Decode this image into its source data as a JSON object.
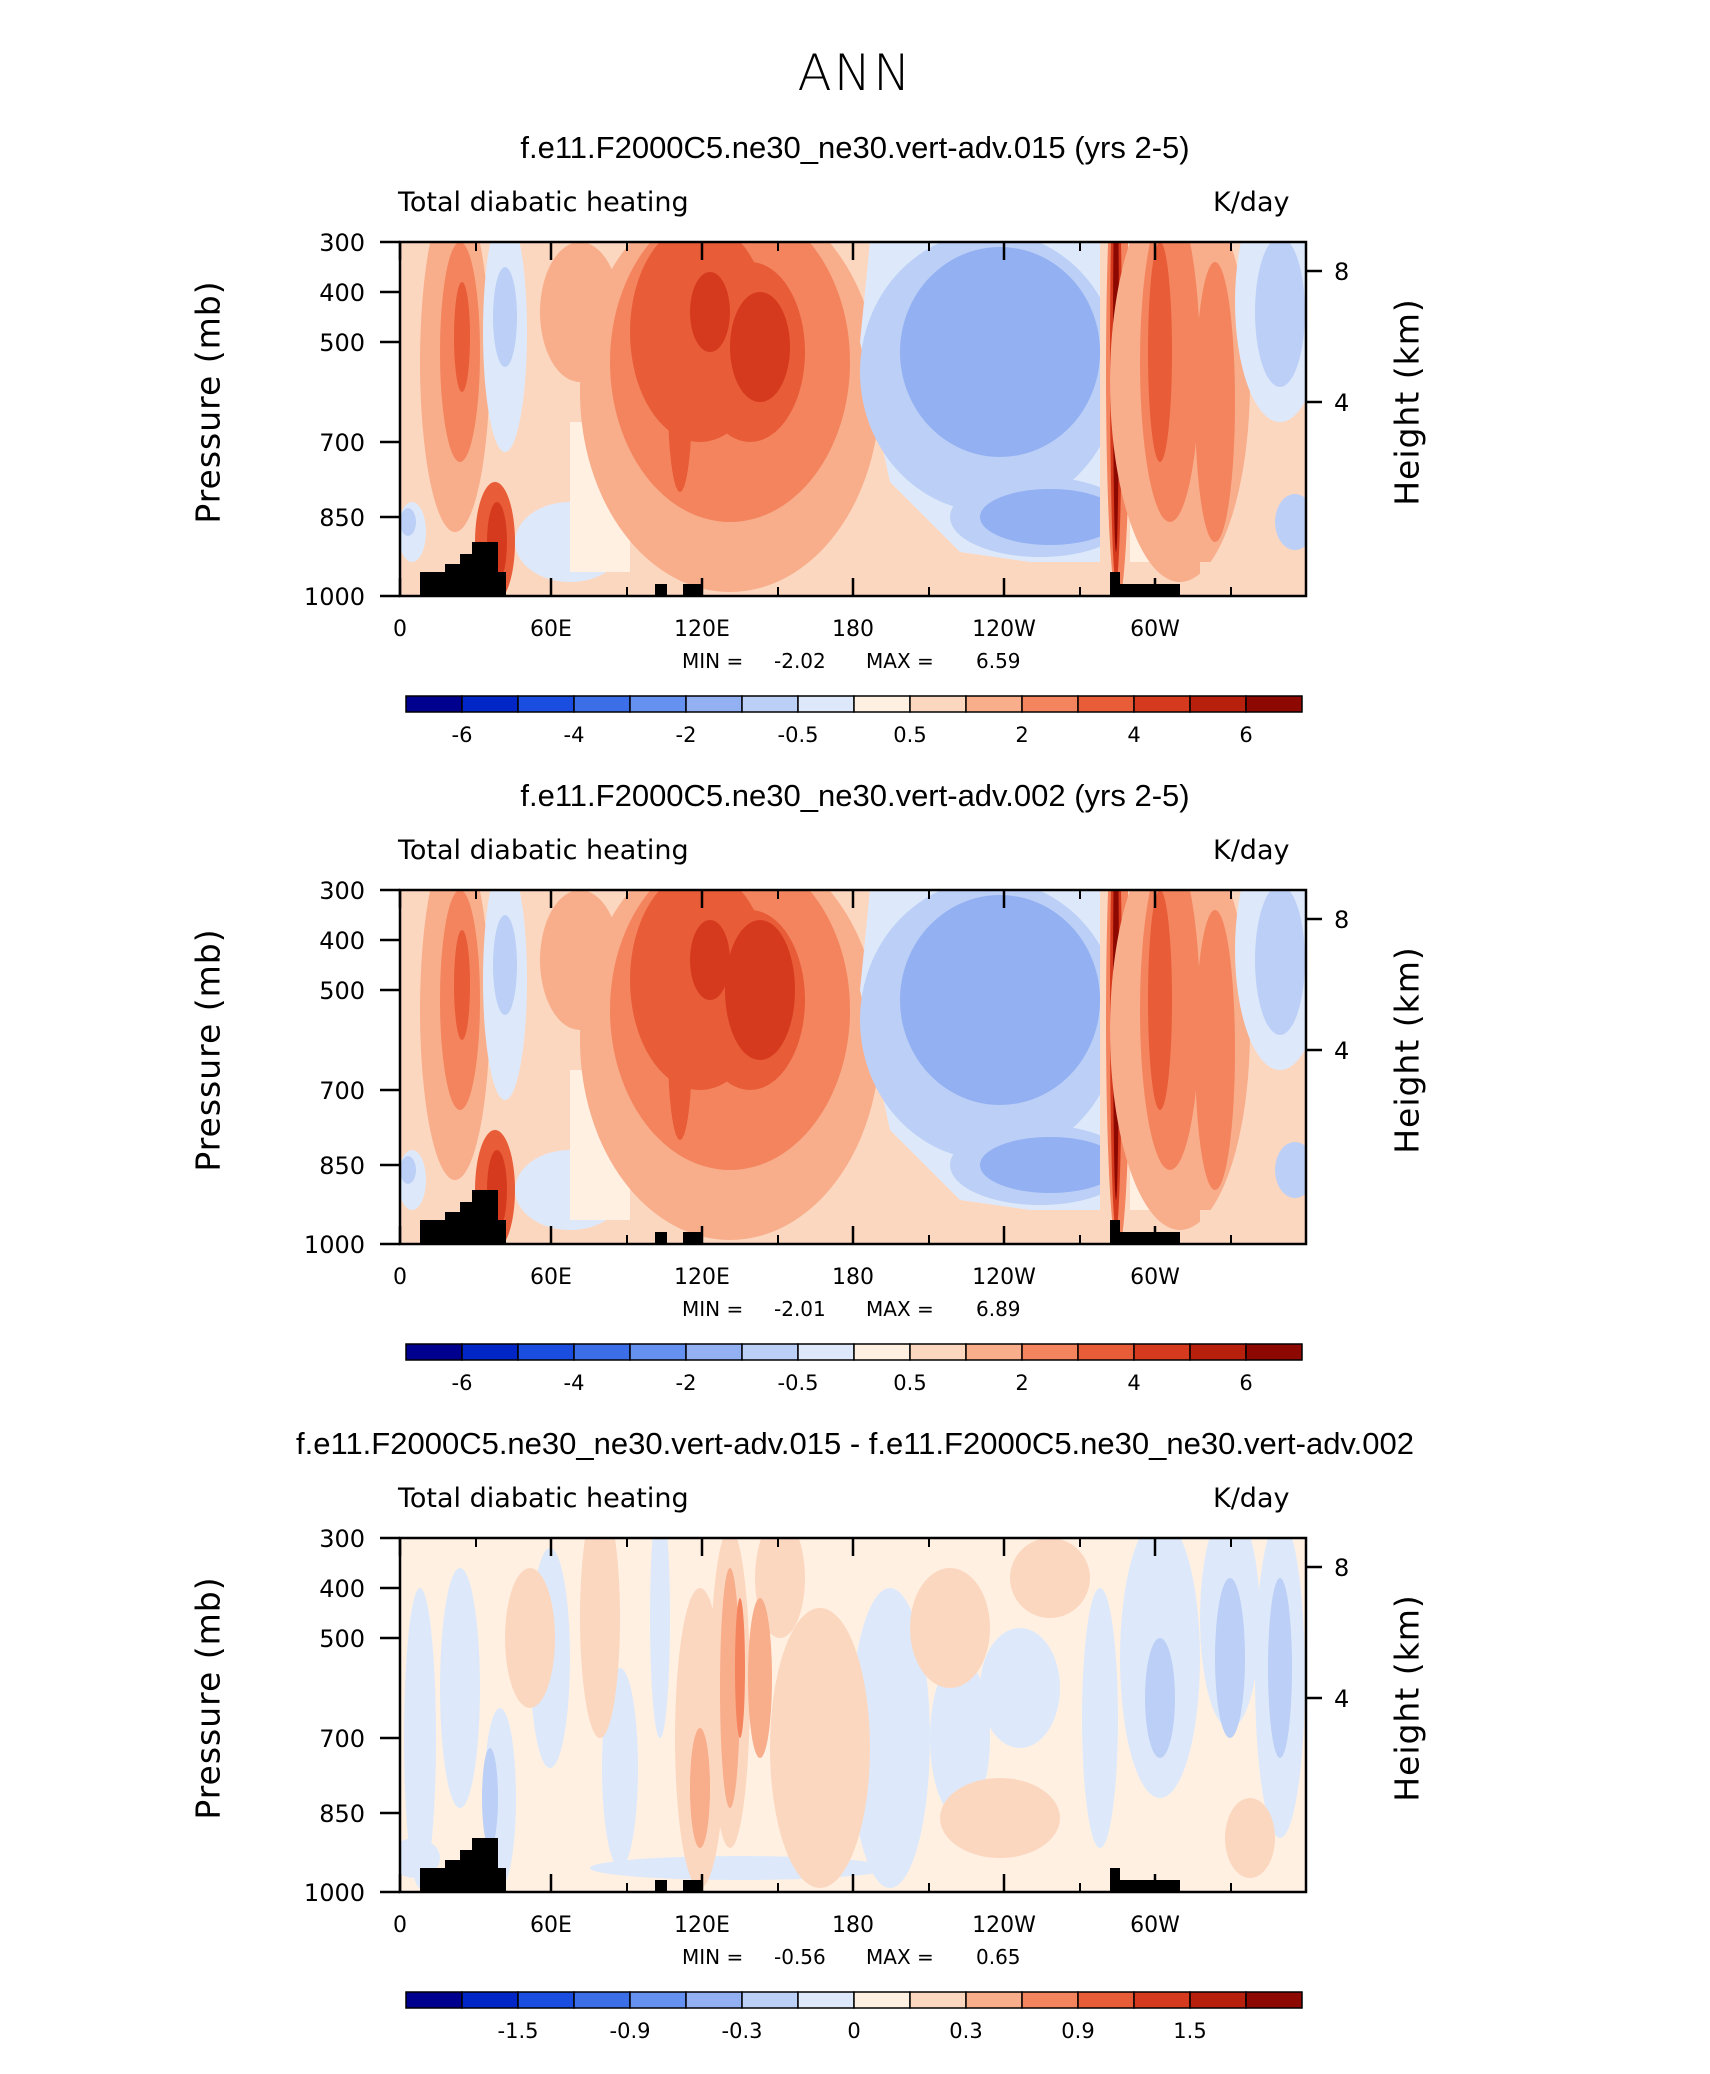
{
  "page": {
    "title": "ANN"
  },
  "colors": {
    "bins": [
      "#00008f",
      "#0026c8",
      "#1a4ee0",
      "#3c6ee8",
      "#6591f0",
      "#92b0f2",
      "#bccff6",
      "#dde9fa",
      "#fff0e2",
      "#fcd7c0",
      "#f8ad8b",
      "#f3845e",
      "#e85c38",
      "#d63a1e",
      "#b8200e",
      "#8c0800"
    ],
    "topo": "#000000"
  },
  "chart_data": [
    {
      "type": "contour",
      "title": "f.e11.F2000C5.ne30_ne30.vert-adv.015 (yrs 2-5)",
      "left_string": "Total diabatic heating",
      "right_string": "K/day",
      "ylabel": "Pressure (mb)",
      "y2label": "Height (km)",
      "yticks": [
        "300",
        "400",
        "500",
        "700",
        "850",
        "1000"
      ],
      "y2ticks": [
        "8",
        "4"
      ],
      "xticks": [
        "0",
        "60E",
        "120E",
        "180",
        "120W",
        "60W"
      ],
      "minmax": {
        "min_label": "MIN =",
        "min": "-2.02",
        "max_label": "MAX =",
        "max": "6.59"
      },
      "colorbar": {
        "ticks": [
          "-6",
          "-4",
          "-2",
          "-0.5",
          "0.5",
          "2",
          "4",
          "6"
        ]
      }
    },
    {
      "type": "contour",
      "title": "f.e11.F2000C5.ne30_ne30.vert-adv.002 (yrs 2-5)",
      "left_string": "Total diabatic heating",
      "right_string": "K/day",
      "ylabel": "Pressure (mb)",
      "y2label": "Height (km)",
      "yticks": [
        "300",
        "400",
        "500",
        "700",
        "850",
        "1000"
      ],
      "y2ticks": [
        "8",
        "4"
      ],
      "xticks": [
        "0",
        "60E",
        "120E",
        "180",
        "120W",
        "60W"
      ],
      "minmax": {
        "min_label": "MIN =",
        "min": "-2.01",
        "max_label": "MAX =",
        "max": "6.89"
      },
      "colorbar": {
        "ticks": [
          "-6",
          "-4",
          "-2",
          "-0.5",
          "0.5",
          "2",
          "4",
          "6"
        ]
      }
    },
    {
      "type": "contour",
      "title": "f.e11.F2000C5.ne30_ne30.vert-adv.015 - f.e11.F2000C5.ne30_ne30.vert-adv.002",
      "left_string": "Total diabatic heating",
      "right_string": "K/day",
      "ylabel": "Pressure (mb)",
      "y2label": "Height (km)",
      "yticks": [
        "300",
        "400",
        "500",
        "700",
        "850",
        "1000"
      ],
      "y2ticks": [
        "8",
        "4"
      ],
      "xticks": [
        "0",
        "60E",
        "120E",
        "180",
        "120W",
        "60W"
      ],
      "minmax": {
        "min_label": "MIN =",
        "min": "-0.56",
        "max_label": "MAX =",
        "max": "0.65"
      },
      "colorbar": {
        "ticks": [
          "-1.5",
          "-0.9",
          "-0.3",
          "0",
          "0.3",
          "0.9",
          "1.5"
        ]
      }
    }
  ]
}
